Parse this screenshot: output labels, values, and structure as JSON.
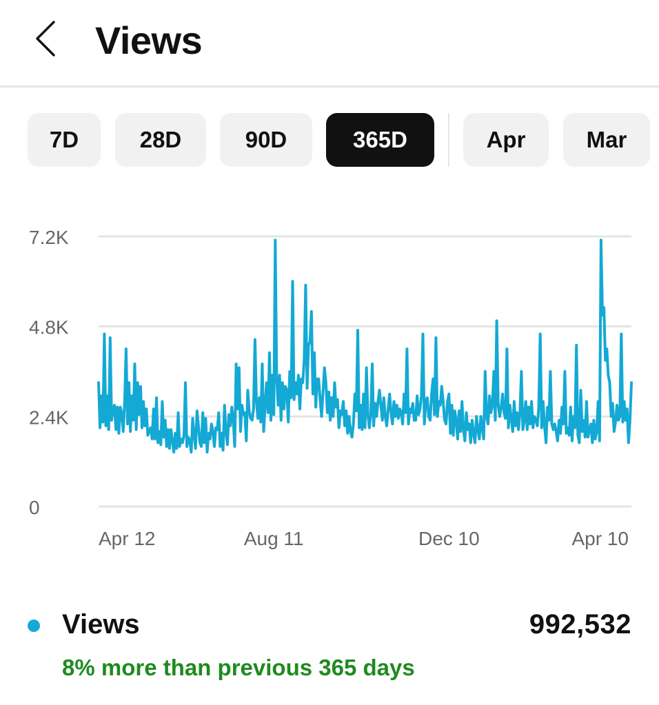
{
  "header": {
    "title": "Views"
  },
  "filters": {
    "items": [
      {
        "label": "7D"
      },
      {
        "label": "28D"
      },
      {
        "label": "90D"
      },
      {
        "label": "365D",
        "active": true
      },
      {
        "label": "Apr"
      },
      {
        "label": "Mar"
      }
    ]
  },
  "chart_data": {
    "type": "line",
    "title": "",
    "xlabel": "",
    "ylabel": "",
    "ylim": [
      0,
      7200
    ],
    "yticks": [
      {
        "value": 0,
        "label": "0"
      },
      {
        "value": 2400,
        "label": "2.4K"
      },
      {
        "value": 4800,
        "label": "4.8K"
      },
      {
        "value": 7200,
        "label": "7.2K"
      }
    ],
    "xticks": [
      {
        "x": 0,
        "label": "Apr 12"
      },
      {
        "x": 121,
        "label": "Aug 11"
      },
      {
        "x": 242,
        "label": "Dec 10"
      },
      {
        "x": 363,
        "label": "Apr 10"
      }
    ],
    "grid": true,
    "color": "#14a9d4",
    "series": [
      {
        "name": "",
        "x_start": 0,
        "x_step": 1,
        "values": [
          3300,
          2100,
          2950,
          2250,
          4600,
          2150,
          2950,
          2050,
          4500,
          2300,
          2600,
          2700,
          2050,
          2650,
          1950,
          2650,
          2500,
          2000,
          2750,
          4200,
          2200,
          3300,
          2000,
          2950,
          2300,
          3800,
          2050,
          3300,
          2450,
          3200,
          2100,
          2800,
          2150,
          2600,
          1900,
          2000,
          2100,
          1800,
          2600,
          1800,
          2900,
          1700,
          2000,
          1650,
          2800,
          1850,
          2300,
          1600,
          2050,
          1550,
          2050,
          1750,
          1450,
          1950,
          1550,
          2500,
          1600,
          1800,
          1700,
          1900,
          3300,
          1600,
          1850,
          1750,
          1450,
          2350,
          1900,
          1550,
          2550,
          2150,
          1700,
          1600,
          2500,
          1700,
          2350,
          1450,
          1950,
          1800,
          2200,
          2000,
          1600,
          2100,
          2050,
          2500,
          1600,
          1950,
          1500,
          2700,
          2000,
          1650,
          2450,
          2150,
          2650,
          2300,
          1600,
          3800,
          2600,
          3700,
          2000,
          2700,
          2450,
          2500,
          1750,
          3100,
          2550,
          2350,
          2300,
          2600,
          4450,
          2800,
          2350,
          2900,
          2250,
          3800,
          2000,
          2700,
          3300,
          2500,
          4100,
          2300,
          3500,
          2450,
          7100,
          3400,
          2700,
          3500,
          2300,
          3300,
          2600,
          3200,
          3100,
          2250,
          3600,
          2900,
          6000,
          2850,
          3300,
          3000,
          3500,
          2600,
          3400,
          3300,
          3900,
          5900,
          3150,
          4300,
          4400,
          5200,
          3000,
          4100,
          2650,
          3400,
          3400,
          2850,
          2400,
          3050,
          3700,
          3300,
          2500,
          3050,
          2300,
          2900,
          2400,
          3300,
          2650,
          2850,
          2100,
          2550,
          2450,
          2800,
          2150,
          2550,
          1950,
          2400,
          2000,
          1850,
          2200,
          3000,
          2550,
          4700,
          2100,
          2700,
          2050,
          3000,
          2100,
          3700,
          2450,
          2100,
          2450,
          3800,
          2150,
          2750,
          2400,
          2800,
          3100,
          2700,
          2300,
          2900,
          2400,
          2150,
          2600,
          3000,
          2500,
          2200,
          2800,
          2400,
          2700,
          2350,
          2600,
          2500,
          2200,
          3000,
          2500,
          4200,
          2200,
          2600,
          2500,
          2750,
          2300,
          2300,
          2950,
          2450,
          2600,
          2950,
          4600,
          2200,
          2800,
          2900,
          2400,
          2300,
          3000,
          3400,
          2450,
          4500,
          2400,
          2800,
          2700,
          3200,
          2800,
          2300,
          2200,
          2800,
          3000,
          1950,
          2700,
          1900,
          2550,
          2300,
          1800,
          2550,
          2000,
          2800,
          2050,
          1750,
          2500,
          2050,
          2200,
          1700,
          2300,
          1950,
          1700,
          2400,
          2050,
          1800,
          2400,
          2100,
          1800,
          3600,
          2400,
          2200,
          2950,
          2500,
          2700,
          3600,
          2300,
          4950,
          2700,
          2400,
          2650,
          3000,
          2500,
          2350,
          4200,
          2100,
          2700,
          2350,
          2000,
          2800,
          2150,
          2500,
          2050,
          2500,
          3600,
          2050,
          2300,
          2800,
          2050,
          2650,
          2200,
          2800,
          2100,
          2400,
          2300,
          2150,
          2650,
          4600,
          2100,
          2800,
          2150,
          1700,
          2650,
          2300,
          3600,
          2200,
          2050,
          2200,
          2000,
          1750,
          2300,
          1950,
          2650,
          2200,
          3600,
          1950,
          2100,
          1900,
          2650,
          1750,
          2400,
          2100,
          4300,
          1900,
          1700,
          3100,
          2000,
          2300,
          1850,
          2800,
          1850,
          2050,
          2200,
          1700,
          2300,
          1800,
          2000,
          2800,
          1750,
          7100,
          5100,
          5300,
          3900,
          4200,
          3500,
          3300,
          2400,
          2750,
          2000,
          2250,
          2700,
          2300,
          2400,
          4600,
          2250,
          2800,
          2300,
          2600,
          1700,
          2300,
          3300
        ]
      }
    ]
  },
  "summary": {
    "label": "Views",
    "total": "992,532",
    "change": "8% more than previous 365 days"
  },
  "icons": {
    "back": "chevron-left-icon"
  }
}
